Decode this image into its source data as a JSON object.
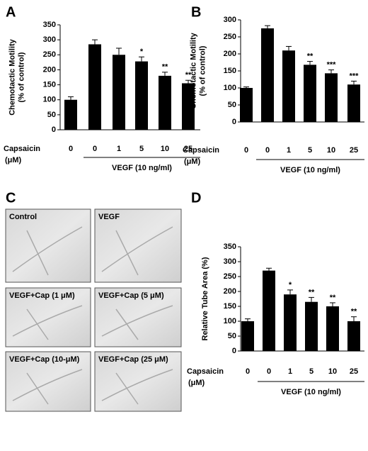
{
  "chart_data": [
    {
      "type": "bar",
      "panel": "A",
      "ylabel": [
        "Chemotactic Motility",
        "(% of control)"
      ],
      "categories": [
        "0",
        "0",
        "1",
        "5",
        "10",
        "25"
      ],
      "values": [
        100,
        285,
        250,
        228,
        180,
        155
      ],
      "errors": [
        10,
        15,
        22,
        15,
        12,
        10
      ],
      "significance": [
        null,
        null,
        null,
        "*",
        "**",
        "**"
      ],
      "color": "#000000",
      "ylim": [
        0,
        350
      ],
      "yticks": [
        0,
        50,
        100,
        150,
        200,
        250,
        300,
        350
      ],
      "x_label": "Capsaicin",
      "x_unit": "(μM)",
      "group_label": "VEGF (10 ng/ml)"
    },
    {
      "type": "bar",
      "panel": "B",
      "ylabel": [
        "Chemotactic Motility",
        "(% of control)"
      ],
      "categories": [
        "0",
        "0",
        "1",
        "5",
        "10",
        "25"
      ],
      "values": [
        100,
        275,
        210,
        168,
        143,
        110
      ],
      "errors": [
        3,
        8,
        12,
        10,
        10,
        10
      ],
      "significance": [
        null,
        null,
        null,
        "**",
        "***",
        "***"
      ],
      "color": "#000000",
      "ylim": [
        0,
        300
      ],
      "yticks": [
        0,
        50,
        100,
        150,
        200,
        250,
        300
      ],
      "x_label": "Capsaicin",
      "x_unit": "(μM)",
      "group_label": "VEGF (10 ng/ml)"
    },
    {
      "type": "bar",
      "panel": "D",
      "ylabel": [
        "Relative Tube Area (%)"
      ],
      "categories": [
        "0",
        "0",
        "1",
        "5",
        "10",
        "25"
      ],
      "values": [
        100,
        270,
        190,
        165,
        150,
        100
      ],
      "errors": [
        8,
        8,
        15,
        15,
        12,
        15
      ],
      "significance": [
        null,
        null,
        "*",
        "**",
        "**",
        "**"
      ],
      "color": "#000000",
      "ylim": [
        0,
        350
      ],
      "yticks": [
        0,
        50,
        100,
        150,
        200,
        250,
        300,
        350
      ],
      "x_label": "Capsaicin",
      "x_unit": "(μM)",
      "group_label": "VEGF (10 ng/ml)"
    }
  ],
  "micrographs": {
    "panel": "C",
    "labels": [
      "Control",
      "VEGF",
      "VEGF+Cap (1 μM)",
      "VEGF+Cap (5 μM)",
      "VEGF+Cap (10-μM)",
      "VEGF+Cap (25 μM)"
    ]
  }
}
